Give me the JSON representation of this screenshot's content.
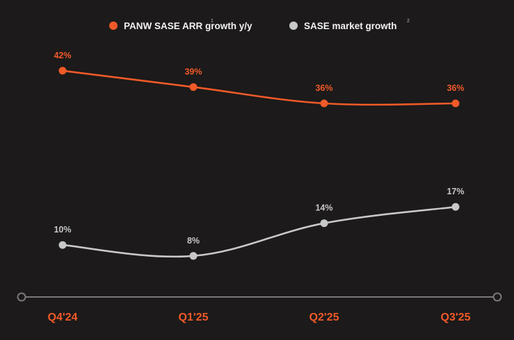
{
  "chart_data": {
    "type": "line",
    "categories": [
      "Q4'24",
      "Q1'25",
      "Q2'25",
      "Q3'25"
    ],
    "series": [
      {
        "name": "PANW SASE ARR growth y/y",
        "footnote": "1",
        "color": "#f05a28",
        "values": [
          42,
          39,
          36,
          36
        ],
        "labels": [
          "42%",
          "39%",
          "36%",
          "36%"
        ]
      },
      {
        "name": "SASE market growth",
        "footnote": "2",
        "color": "#c8c8c8",
        "values": [
          10,
          8,
          14,
          17
        ],
        "labels": [
          "10%",
          "8%",
          "14%",
          "17%"
        ]
      }
    ],
    "legend_position": "top-center",
    "grid": false,
    "y_axis_shown": false,
    "colors": {
      "background": "#1c1a1a",
      "axis": "#7a7a7a",
      "tick_label": "#f05a28",
      "legend_text": "#f2f2f2"
    }
  }
}
